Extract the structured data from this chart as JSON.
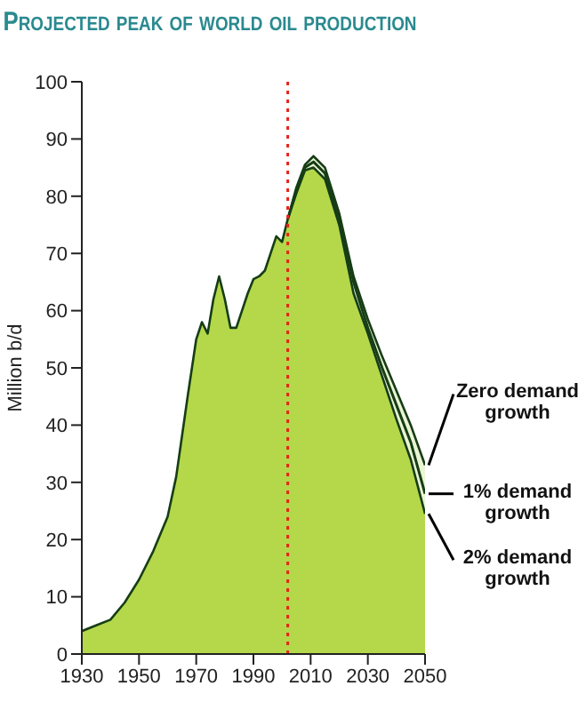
{
  "chart_data": {
    "type": "area",
    "title": "Projected peak of world oil production",
    "ylabel": "Million b/d",
    "xlim": [
      1930,
      2050
    ],
    "xticks": [
      1930,
      1950,
      1970,
      1990,
      2010,
      2030,
      2050
    ],
    "ylim": [
      0,
      100
    ],
    "yticks": [
      0,
      10,
      20,
      30,
      40,
      50,
      60,
      70,
      80,
      90,
      100
    ],
    "series": [
      {
        "name": "Zero demand growth",
        "color": "#eaf5d4",
        "x": [
          2002,
          2005,
          2008,
          2011,
          2015,
          2020,
          2025,
          2030,
          2035,
          2040,
          2045,
          2050
        ],
        "values": [
          76,
          81.5,
          85.5,
          87,
          85,
          77,
          66,
          58.5,
          52,
          46,
          40,
          33
        ]
      },
      {
        "name": "1% demand growth",
        "type": "line",
        "color": "#163d16",
        "x": [
          2002,
          2005,
          2008,
          2011,
          2015,
          2020,
          2025,
          2030,
          2035,
          2040,
          2045,
          2050
        ],
        "values": [
          76,
          81,
          85,
          86,
          84,
          76,
          65,
          57,
          50,
          43.5,
          37,
          28
        ]
      },
      {
        "name": "2% demand growth",
        "color": "#b4d84a",
        "x": [
          1930,
          1935,
          1940,
          1945,
          1950,
          1955,
          1960,
          1963,
          1967,
          1970,
          1972,
          1974,
          1976,
          1978,
          1980,
          1982,
          1984,
          1986,
          1988,
          1990,
          1992,
          1994,
          1996,
          1998,
          2000,
          2002,
          2005,
          2008,
          2011,
          2015,
          2020,
          2025,
          2030,
          2035,
          2040,
          2045,
          2050
        ],
        "values": [
          4,
          5,
          6,
          9,
          13,
          18,
          24,
          31,
          45,
          55,
          58,
          56,
          62,
          66,
          62,
          57,
          57,
          60,
          63,
          65.5,
          66,
          67,
          70,
          73,
          72,
          76,
          80.5,
          84.5,
          85,
          83,
          75,
          63,
          56,
          48.5,
          41,
          34,
          24.5
        ]
      }
    ],
    "ref_lines": [
      {
        "axis": "x",
        "value": 2002,
        "color": "#e8231c",
        "line_style": "dotted"
      }
    ]
  }
}
